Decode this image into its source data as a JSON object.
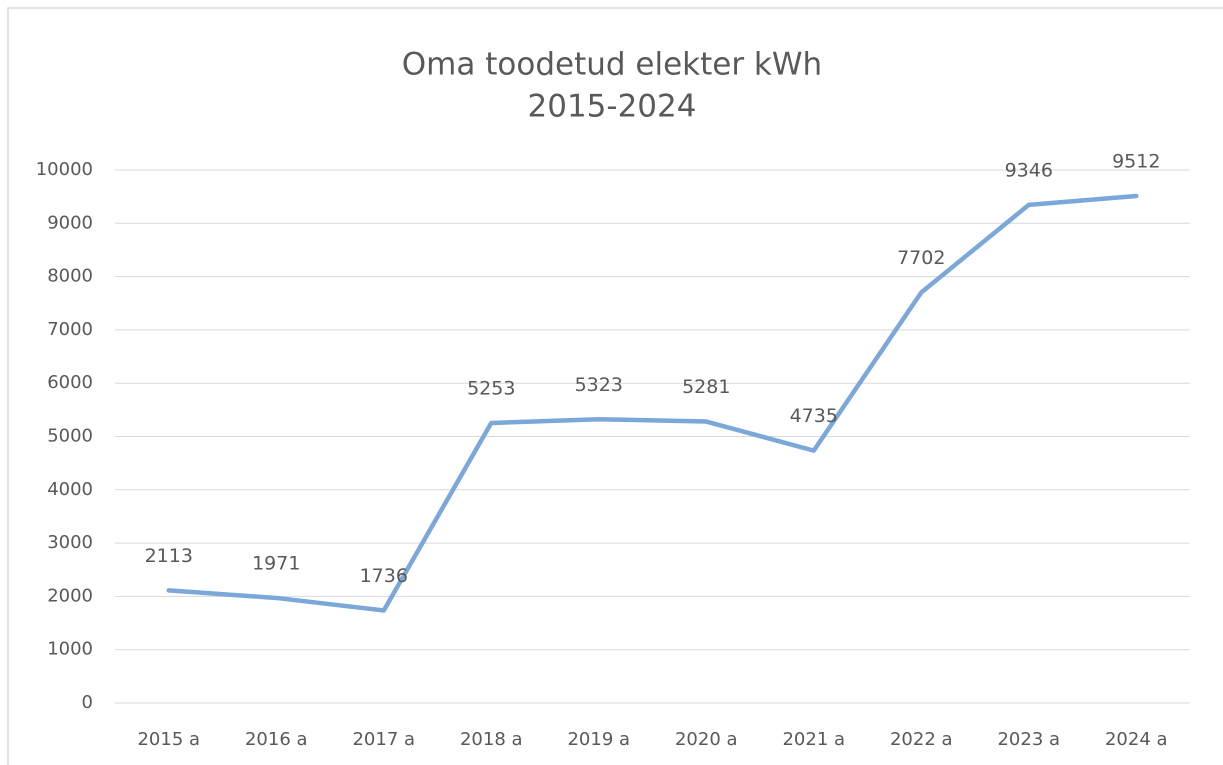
{
  "chart_data": {
    "type": "line",
    "title": "Oma toodetud elekter kWh",
    "subtitle": "2015-2024",
    "categories": [
      "2015 a",
      "2016 a",
      "2017 a",
      "2018 a",
      "2019 a",
      "2020 a",
      "2021 a",
      "2022 a",
      "2023 a",
      "2024 a"
    ],
    "series": [
      {
        "name": "Oma toodetud elekter kWh",
        "color": "#7ba7d9",
        "values": [
          2113,
          1971,
          1736,
          5253,
          5323,
          5281,
          4735,
          7702,
          9346,
          9512
        ]
      }
    ],
    "ylim": [
      0,
      10000
    ],
    "yticks": [
      0,
      1000,
      2000,
      3000,
      4000,
      5000,
      6000,
      7000,
      8000,
      9000,
      10000
    ],
    "grid": true,
    "data_labels": true
  }
}
